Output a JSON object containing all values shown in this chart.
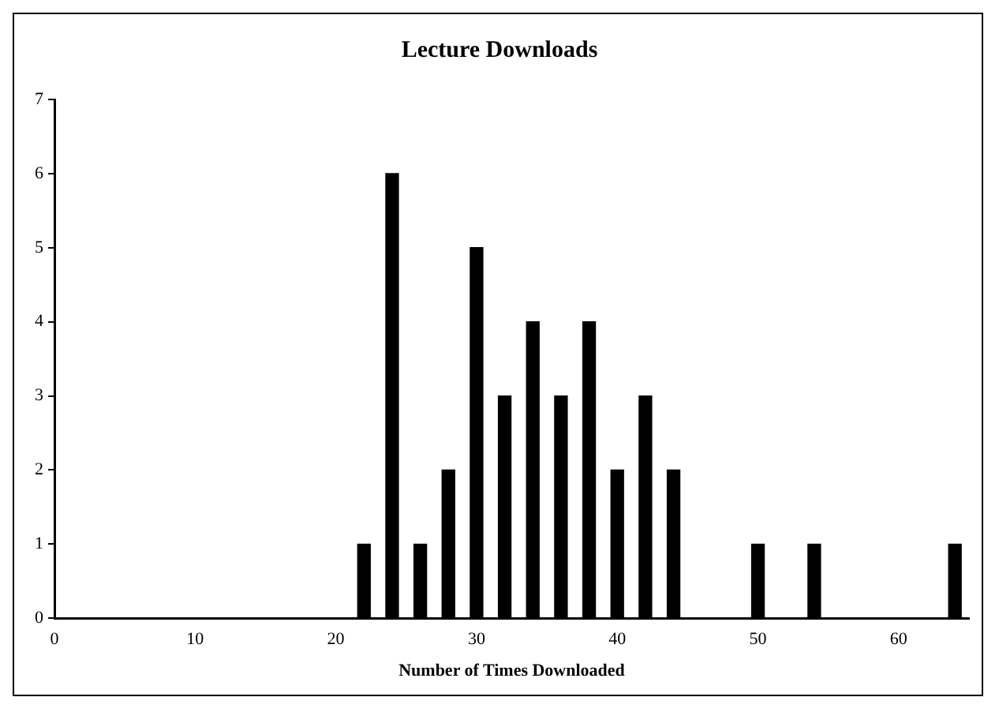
{
  "chart_data": {
    "type": "bar",
    "title": "Lecture Downloads",
    "xlabel": "Number of Times Downloaded",
    "x": [
      22,
      24,
      26,
      28,
      30,
      32,
      34,
      36,
      38,
      40,
      42,
      44,
      50,
      54,
      64
    ],
    "values": [
      1,
      6,
      1,
      2,
      5,
      3,
      4,
      3,
      4,
      2,
      3,
      2,
      1,
      1,
      1
    ],
    "color": "#000000",
    "xlim": [
      0,
      65
    ],
    "xticks": [
      0,
      10,
      20,
      30,
      40,
      50,
      60
    ],
    "ylim": [
      0,
      7
    ],
    "yticks": [
      0,
      1,
      2,
      3,
      4,
      5,
      6,
      7
    ],
    "grid": false,
    "legend": false
  }
}
